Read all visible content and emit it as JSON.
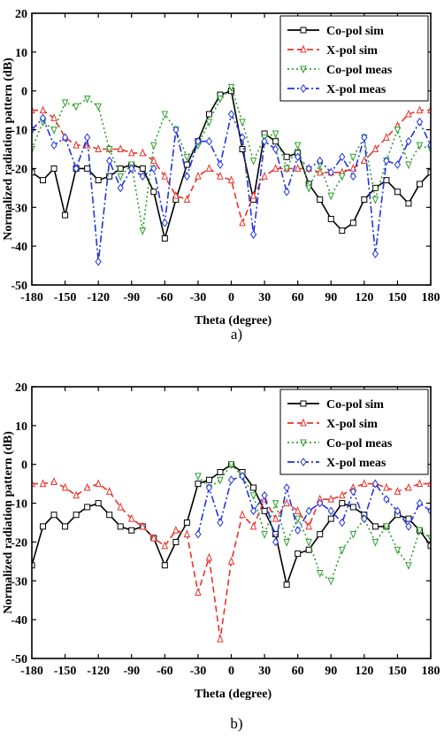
{
  "chart_data": [
    {
      "type": "line",
      "panel_label": "a)",
      "xlabel": "Theta (degree)",
      "ylabel": "Normalized radiation pattern (dB)",
      "xlim": [
        -180,
        180
      ],
      "ylim": [
        -50,
        20
      ],
      "xticks": [
        "-180",
        "-150",
        "-120",
        "-90",
        "-60",
        "-30",
        "0",
        "30",
        "60",
        "90",
        "120",
        "150",
        "180"
      ],
      "yticks": [
        "20",
        "10",
        "0",
        "-10",
        "-20",
        "-30",
        "-40",
        "-50"
      ],
      "legend_position": "top-right",
      "series": [
        {
          "name": "Co-pol sim",
          "color": "#000000",
          "marker": "square",
          "dash": "solid",
          "x": [
            -180,
            -170,
            -160,
            -150,
            -140,
            -130,
            -120,
            -110,
            -100,
            -90,
            -80,
            -70,
            -60,
            -50,
            -40,
            -30,
            -20,
            -10,
            0,
            10,
            20,
            30,
            40,
            50,
            60,
            70,
            80,
            90,
            100,
            110,
            120,
            130,
            140,
            150,
            160,
            170,
            180
          ],
          "y": [
            -21,
            -23,
            -20,
            -32,
            -20,
            -20,
            -23,
            -22,
            -20,
            -19,
            -20,
            -26,
            -38,
            -28,
            -19,
            -13,
            -6,
            -1,
            0,
            -15,
            -28,
            -11,
            -13,
            -17,
            -16,
            -24,
            -28,
            -33,
            -36,
            -34,
            -28,
            -25,
            -23,
            -26,
            -29,
            -24,
            -21
          ]
        },
        {
          "name": "X-pol sim",
          "color": "#e8332a",
          "marker": "triangle-up",
          "dash": "dash",
          "x": [
            -180,
            -170,
            -160,
            -150,
            -140,
            -130,
            -120,
            -110,
            -100,
            -90,
            -80,
            -70,
            -60,
            -50,
            -40,
            -30,
            -20,
            -10,
            0,
            10,
            20,
            30,
            40,
            50,
            60,
            70,
            80,
            90,
            100,
            110,
            120,
            130,
            140,
            150,
            160,
            170,
            180
          ],
          "y": [
            -5,
            -5,
            -7,
            -12,
            -14,
            -14,
            -15,
            -15,
            -15,
            -16,
            -16,
            -18,
            -22,
            -27,
            -28,
            -22,
            -20,
            -22,
            -23,
            -34,
            -27,
            -22,
            -20,
            -20,
            -20,
            -20,
            -21,
            -21,
            -21,
            -20,
            -18,
            -15,
            -12,
            -9,
            -6,
            -5,
            -5
          ]
        },
        {
          "name": "Co-pol meas",
          "color": "#2f9e2f",
          "marker": "triangle-down",
          "dash": "dot",
          "x": [
            -180,
            -170,
            -160,
            -150,
            -140,
            -130,
            -120,
            -110,
            -100,
            -90,
            -80,
            -70,
            -60,
            -50,
            -40,
            -30,
            -20,
            -10,
            0,
            10,
            20,
            30,
            40,
            50,
            60,
            70,
            80,
            90,
            100,
            110,
            120,
            130,
            140,
            150,
            160,
            170,
            180
          ],
          "y": [
            -15,
            -8,
            -10,
            -3,
            -4,
            -2,
            -4,
            -15,
            -22,
            -19,
            -36,
            -14,
            -6,
            -10,
            -17,
            -14,
            -8,
            -2,
            1,
            -8,
            -18,
            -12,
            -11,
            -20,
            -14,
            -25,
            -19,
            -27,
            -22,
            -17,
            -12,
            -28,
            -18,
            -10,
            -19,
            -14,
            -15
          ]
        },
        {
          "name": "X-pol meas",
          "color": "#2233dd",
          "marker": "diamond",
          "dash": "dashdot",
          "x": [
            -180,
            -170,
            -160,
            -150,
            -140,
            -130,
            -120,
            -110,
            -100,
            -90,
            -80,
            -70,
            -60,
            -50,
            -40,
            -30,
            -20,
            -10,
            0,
            10,
            20,
            30,
            40,
            50,
            60,
            70,
            80,
            90,
            100,
            110,
            120,
            130,
            140,
            150,
            160,
            170,
            180
          ],
          "y": [
            -10,
            -7,
            -14,
            -12,
            -20,
            -12,
            -44,
            -18,
            -25,
            -20,
            -22,
            -20,
            -34,
            -10,
            -22,
            -13,
            -13,
            -19,
            -6,
            -12,
            -37,
            -13,
            -15,
            -26,
            -17,
            -20,
            -18,
            -21,
            -17,
            -22,
            -12,
            -42,
            -18,
            -19,
            -13,
            -8,
            -14
          ]
        }
      ]
    },
    {
      "type": "line",
      "panel_label": "b)",
      "xlabel": "Theta (degree)",
      "ylabel": "Normalized radiation pattern (dB)",
      "xlim": [
        -180,
        180
      ],
      "ylim": [
        -50,
        20
      ],
      "xticks": [
        "-180",
        "-150",
        "-120",
        "-90",
        "-60",
        "-30",
        "0",
        "30",
        "60",
        "90",
        "120",
        "150",
        "180"
      ],
      "yticks": [
        "20",
        "10",
        "0",
        "-10",
        "-20",
        "-30",
        "-40",
        "-50"
      ],
      "legend_position": "top-right",
      "series": [
        {
          "name": "Co-pol sim",
          "color": "#000000",
          "marker": "square",
          "dash": "solid",
          "x": [
            -180,
            -170,
            -160,
            -150,
            -140,
            -130,
            -120,
            -110,
            -100,
            -90,
            -80,
            -70,
            -60,
            -50,
            -40,
            -30,
            -20,
            -10,
            0,
            10,
            20,
            30,
            40,
            50,
            60,
            70,
            80,
            90,
            100,
            110,
            120,
            130,
            140,
            150,
            160,
            170,
            180
          ],
          "y": [
            -26,
            -16,
            -13,
            -16,
            -13,
            -11,
            -10,
            -13,
            -16,
            -17,
            -16,
            -19,
            -26,
            -20,
            -15,
            -5,
            -4,
            -2,
            0,
            -2,
            -6,
            -12,
            -18,
            -31,
            -23,
            -22,
            -18,
            -14,
            -10,
            -11,
            -13,
            -16,
            -16,
            -13,
            -14,
            -17,
            -21
          ]
        },
        {
          "name": "X-pol sim",
          "color": "#e8332a",
          "marker": "triangle-up",
          "dash": "dash",
          "x": [
            -180,
            -170,
            -160,
            -150,
            -140,
            -130,
            -120,
            -110,
            -100,
            -90,
            -80,
            -70,
            -60,
            -50,
            -40,
            -30,
            -20,
            -10,
            0,
            10,
            20,
            30,
            40,
            50,
            60,
            70,
            80,
            90,
            100,
            110,
            120,
            130,
            140,
            150,
            160,
            170,
            180
          ],
          "y": [
            -5,
            -5,
            -4.5,
            -6,
            -8,
            -6,
            -5,
            -7,
            -11,
            -14,
            -16,
            -19,
            -21,
            -17,
            -18,
            -33,
            -24,
            -45,
            -25,
            -13,
            -16,
            -9,
            -14,
            -10,
            -12,
            -16,
            -9,
            -9,
            -8,
            -6,
            -5,
            -5,
            -6,
            -7,
            -6,
            -5,
            -5
          ]
        },
        {
          "name": "Co-pol meas",
          "color": "#2f9e2f",
          "marker": "triangle-down",
          "dash": "dot",
          "x": [
            -30,
            -20,
            -10,
            0,
            10,
            20,
            30,
            40,
            50,
            60,
            70,
            80,
            90,
            100,
            110,
            120,
            130,
            140,
            150,
            160,
            170,
            180
          ],
          "y": [
            -3,
            -6,
            -4,
            0,
            -3,
            -8,
            -18,
            -10,
            -20,
            -14,
            -20,
            -28,
            -30,
            -22,
            -18,
            -14,
            -20,
            -16,
            -22,
            -26,
            -17,
            -19
          ]
        },
        {
          "name": "X-pol meas",
          "color": "#2233dd",
          "marker": "diamond",
          "dash": "dashdot",
          "x": [
            -30,
            -20,
            -10,
            0,
            10,
            20,
            30,
            40,
            50,
            60,
            70,
            80,
            90,
            100,
            110,
            120,
            130,
            140,
            150,
            160,
            170,
            180
          ],
          "y": [
            -18,
            -6,
            -15,
            -4,
            -3,
            -12,
            -8,
            -20,
            -6,
            -17,
            -12,
            -10,
            -12,
            -15,
            -7,
            -14,
            -5,
            -9,
            -12,
            -16,
            -10,
            -12
          ]
        }
      ]
    }
  ]
}
